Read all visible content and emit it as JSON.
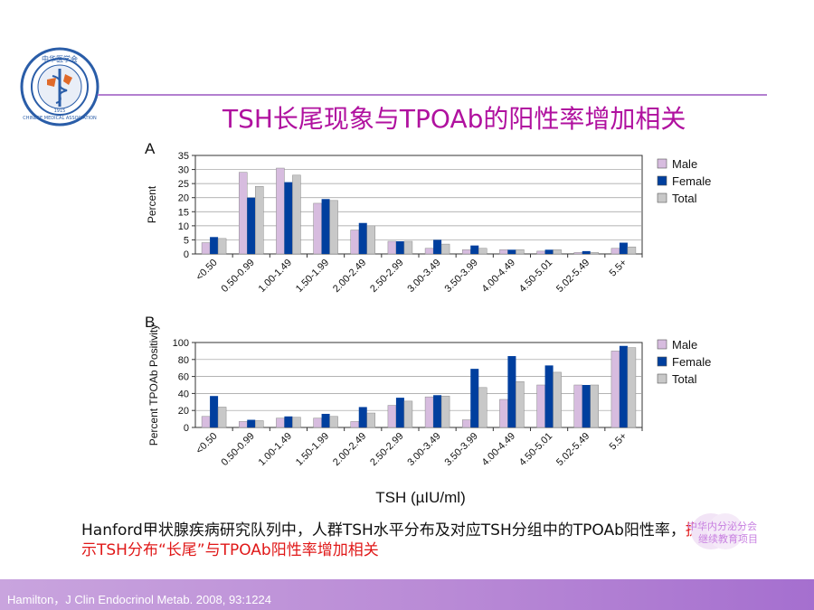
{
  "slide": {
    "title": "TSH长尾现象与TPOAb的阳性率增加相关",
    "caption_part1": "Hanford甲状腺疾病研究队列中，人群TSH水平分布及对应TSH分组中的TPOAb阳性率，",
    "caption_part2": "提示TSH分布“长尾”与TPOAb阳性率增加相关",
    "footer": "Hamilton，J Clin Endocrinol Metab. 2008, 93:1224",
    "watermark_line1": "中华内分泌分会",
    "watermark_line2": "继续教育项目",
    "logo": {
      "icon": "association-seal-icon",
      "top_text": "中华医学会",
      "ring_text": "CHINESE MEDICAL ASSOCIATION",
      "year": "1915"
    }
  },
  "colors": {
    "title": "#b0119f",
    "male": "#d7bcdf",
    "female": "#003f9e",
    "total": "#c8c8c8",
    "highlight": "#e01818",
    "footer": "#b98ad6"
  },
  "chart_data": [
    {
      "type": "bar",
      "panel_label": "A",
      "categories": [
        "<0.50",
        "0.50-0.99",
        "1.00-1.49",
        "1.50-1.99",
        "2.00-2.49",
        "2.50-2.99",
        "3.00-3.49",
        "3.50-3.99",
        "4.00-4.49",
        "4.50-5.01",
        "5.02-5.49",
        "5.5+"
      ],
      "series": [
        {
          "name": "Male",
          "values": [
            4,
            29,
            30.5,
            18,
            8.5,
            4.5,
            2,
            1.5,
            1.5,
            1,
            0.5,
            2
          ]
        },
        {
          "name": "Female",
          "values": [
            6,
            20,
            25.5,
            19.5,
            11,
            4.5,
            5,
            3,
            1.5,
            1.5,
            1,
            4
          ]
        },
        {
          "name": "Total",
          "values": [
            5.5,
            24,
            28,
            19,
            10,
            4.5,
            3.5,
            2,
            1.5,
            1.5,
            0.5,
            2.5
          ]
        }
      ],
      "ylabel": "Percent",
      "xlabel": "",
      "ylim": [
        0,
        35
      ],
      "yticks": [
        0,
        5,
        10,
        15,
        20,
        25,
        30,
        35
      ],
      "legend": "right"
    },
    {
      "type": "bar",
      "panel_label": "B",
      "categories": [
        "<0.50",
        "0.50-0.99",
        "1.00-1.49",
        "1.50-1.99",
        "2.00-2.49",
        "2.50-2.99",
        "3.00-3.49",
        "3.50-3.99",
        "4.00-4.49",
        "4.50-5.01",
        "5.02-5.49",
        "5.5+"
      ],
      "series": [
        {
          "name": "Male",
          "values": [
            13,
            7,
            11,
            11,
            7,
            26,
            36,
            9,
            33,
            50,
            50,
            90
          ]
        },
        {
          "name": "Female",
          "values": [
            37,
            9,
            13,
            16,
            24,
            35,
            38,
            69,
            84,
            73,
            50,
            96
          ]
        },
        {
          "name": "Total",
          "values": [
            24,
            8,
            12,
            13,
            17,
            31,
            37,
            47,
            54,
            65,
            50,
            94
          ]
        }
      ],
      "ylabel": "Percent TPOAb Positivity",
      "xlabel": "TSH (µIU/ml)",
      "ylim": [
        0,
        100
      ],
      "yticks": [
        0,
        20,
        40,
        60,
        80,
        100
      ],
      "legend": "right"
    }
  ]
}
